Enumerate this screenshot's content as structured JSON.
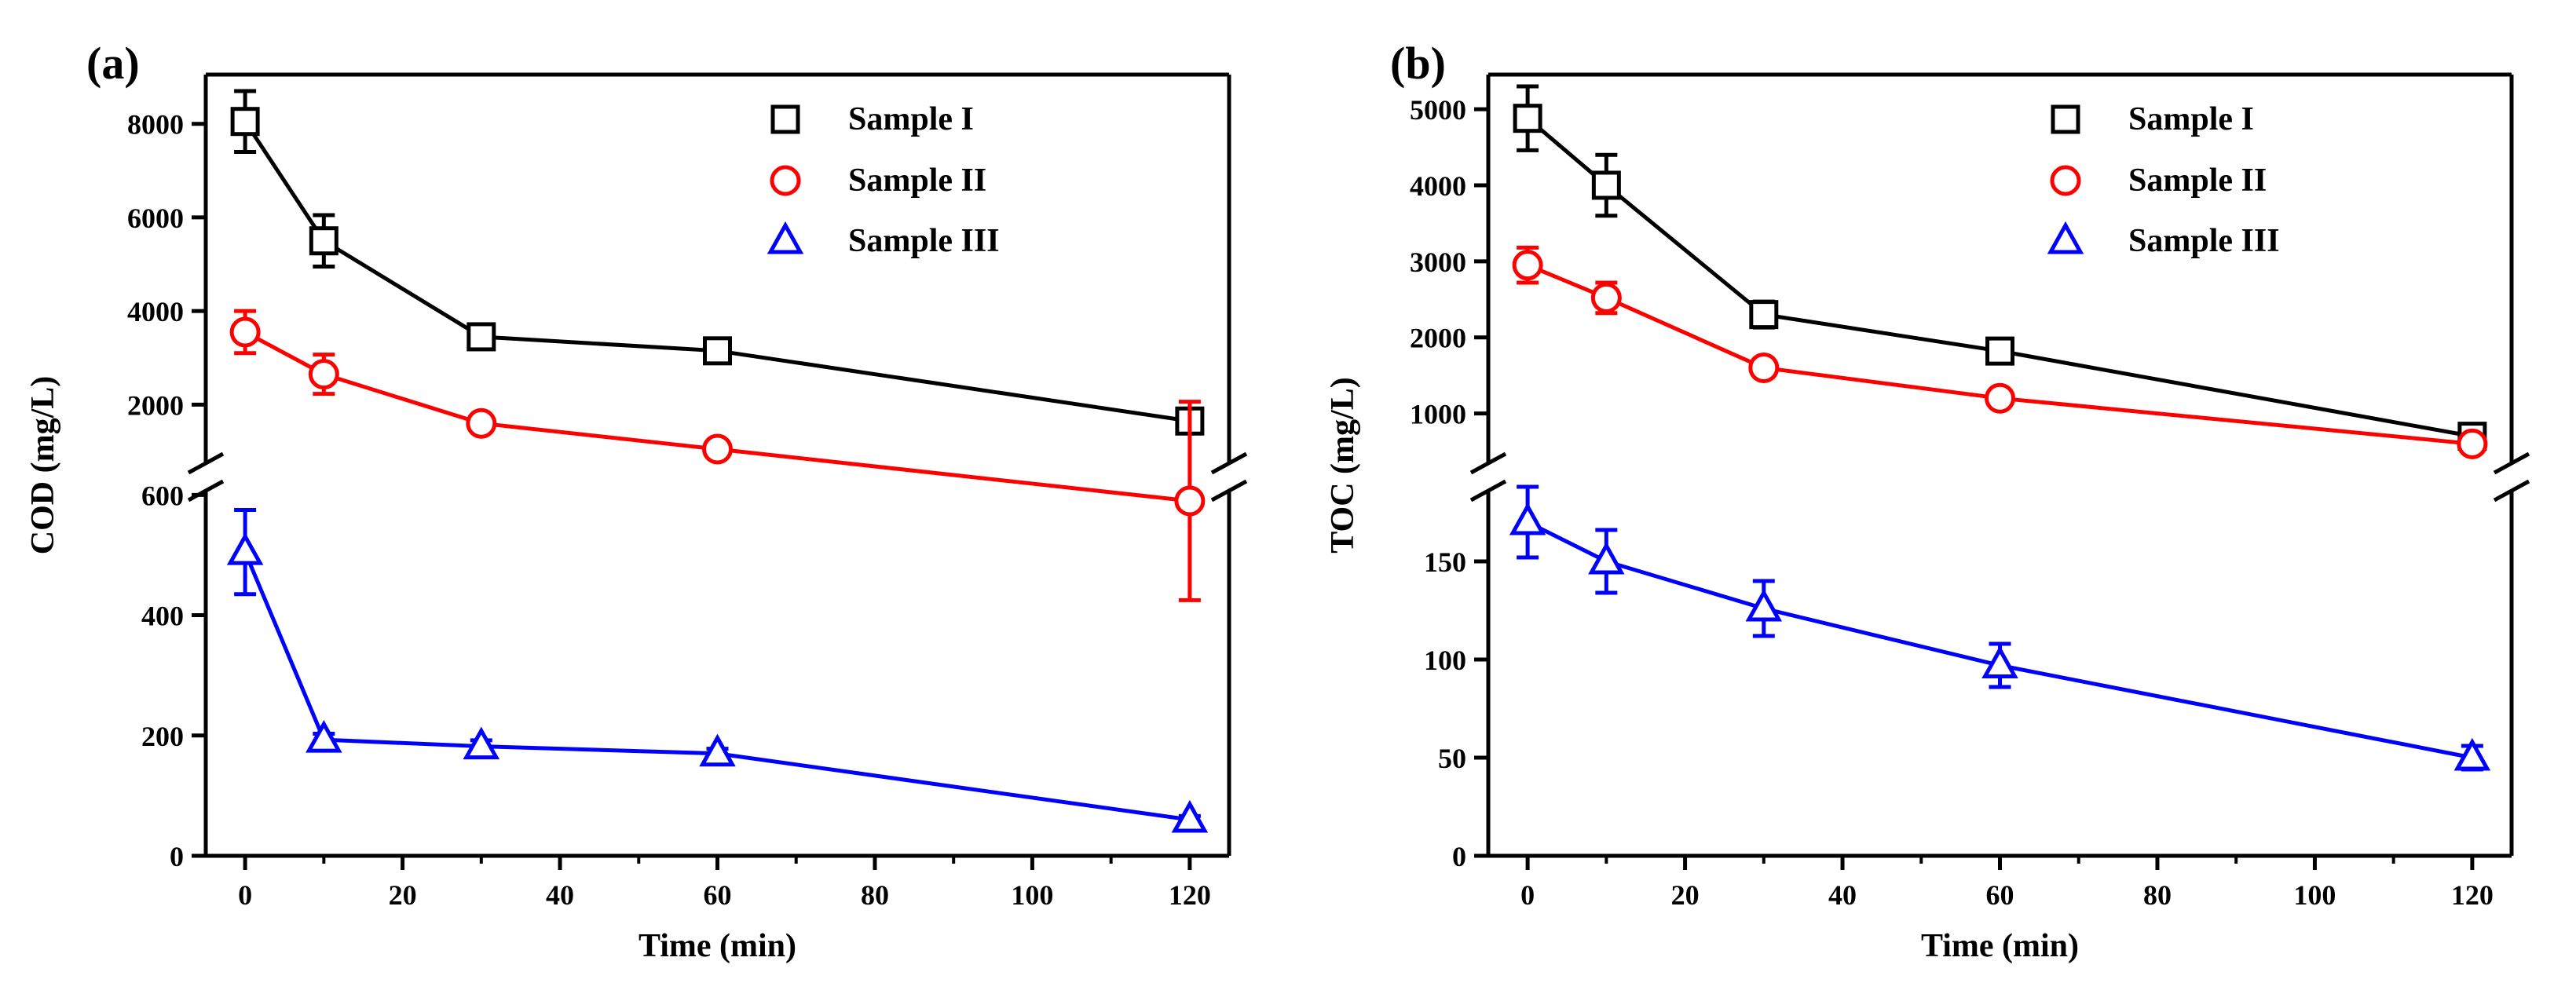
{
  "chart_data": [
    {
      "panel_label": "(a)",
      "type": "line",
      "xlabel": "Time (min)",
      "ylabel": "COD (mg/L)",
      "x_ticks": [
        "0",
        "20",
        "40",
        "60",
        "80",
        "100",
        "120"
      ],
      "xlim": [
        -5,
        125
      ],
      "broken_y_axis": true,
      "y_upper_ticks": [
        "2000",
        "4000",
        "6000",
        "8000"
      ],
      "y_upper_range": [
        1000,
        8800
      ],
      "y_lower_ticks": [
        "0",
        "200",
        "400",
        "600"
      ],
      "y_lower_range": [
        0,
        620
      ],
      "legend_position": "top-right",
      "series": [
        {
          "name": "Sample I",
          "marker": "square",
          "color": "#000000",
          "x": [
            0,
            10,
            30,
            60,
            120
          ],
          "y": [
            8050,
            5500,
            3450,
            3150,
            1650
          ],
          "err": [
            650,
            550,
            250,
            220,
            120
          ]
        },
        {
          "name": "Sample II",
          "marker": "circle",
          "color": "#ff0000",
          "x": [
            0,
            10,
            30,
            60,
            120
          ],
          "y": [
            3550,
            2650,
            1600,
            1050,
            590
          ],
          "err": [
            450,
            420,
            150,
            100,
            165
          ],
          "err_segment": [
            "upper",
            "upper",
            "upper",
            "upper",
            "lower"
          ]
        },
        {
          "name": "Sample III",
          "marker": "triangle",
          "color": "#0000ff",
          "x": [
            0,
            10,
            30,
            60,
            120
          ],
          "y": [
            505,
            193,
            182,
            170,
            60
          ],
          "err": [
            70,
            10,
            10,
            8,
            6
          ],
          "err_segment": [
            "lower",
            "lower",
            "lower",
            "lower",
            "lower"
          ]
        }
      ]
    },
    {
      "panel_label": "(b)",
      "type": "line",
      "xlabel": "Time (min)",
      "ylabel": "TOC (mg/L)",
      "x_ticks": [
        "0",
        "20",
        "40",
        "60",
        "80",
        "100",
        "120"
      ],
      "xlim": [
        -5,
        125
      ],
      "broken_y_axis": true,
      "y_upper_ticks": [
        "1000",
        "2000",
        "3000",
        "4000",
        "5000"
      ],
      "y_upper_range": [
        500,
        5300
      ],
      "y_lower_ticks": [
        "0",
        "50",
        "100",
        "150"
      ],
      "y_lower_range": [
        0,
        190
      ],
      "legend_position": "top-right",
      "series": [
        {
          "name": "Sample I",
          "marker": "square",
          "color": "#000000",
          "x": [
            0,
            10,
            30,
            60,
            120
          ],
          "y": [
            4880,
            4000,
            2300,
            1820,
            700
          ],
          "err": [
            420,
            400,
            170,
            120,
            80
          ]
        },
        {
          "name": "Sample II",
          "marker": "circle",
          "color": "#ff0000",
          "x": [
            0,
            10,
            30,
            60,
            120
          ],
          "y": [
            2950,
            2520,
            1600,
            1200,
            600
          ],
          "err": [
            230,
            200,
            120,
            110,
            80
          ]
        },
        {
          "name": "Sample III",
          "marker": "triangle",
          "color": "#0000ff",
          "x": [
            0,
            10,
            30,
            60,
            120
          ],
          "y": [
            170,
            150,
            126,
            97,
            50
          ],
          "err": [
            18,
            16,
            14,
            11,
            6
          ],
          "err_segment": [
            "lower",
            "lower",
            "lower",
            "lower",
            "lower"
          ]
        }
      ]
    }
  ]
}
